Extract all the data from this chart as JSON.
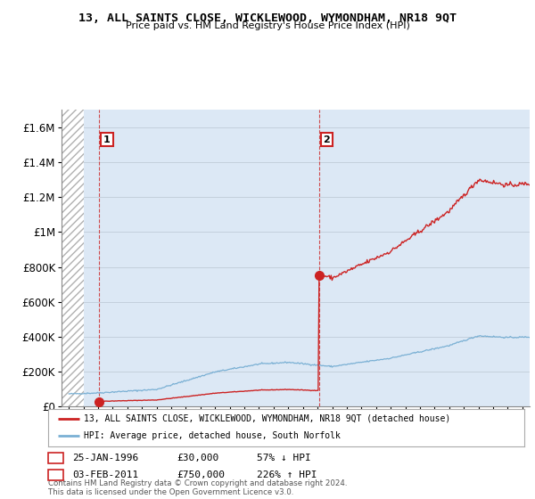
{
  "title": "13, ALL SAINTS CLOSE, WICKLEWOOD, WYMONDHAM, NR18 9QT",
  "subtitle": "Price paid vs. HM Land Registry's House Price Index (HPI)",
  "hpi_color": "#7ab0d4",
  "price_color": "#cc2222",
  "dot_color": "#cc2222",
  "sale1_year": 1996.07,
  "sale1_price": 30000,
  "sale2_year": 2011.09,
  "sale2_price": 750000,
  "ylim": [
    0,
    1700000
  ],
  "yticks": [
    0,
    200000,
    400000,
    600000,
    800000,
    1000000,
    1200000,
    1400000,
    1600000
  ],
  "ytick_labels": [
    "£0",
    "£200K",
    "£400K",
    "£600K",
    "£800K",
    "£1M",
    "£1.2M",
    "£1.4M",
    "£1.6M"
  ],
  "xlim_start": 1993.5,
  "xlim_end": 2025.5,
  "legend_line1": "13, ALL SAINTS CLOSE, WICKLEWOOD, WYMONDHAM, NR18 9QT (detached house)",
  "legend_line2": "HPI: Average price, detached house, South Norfolk",
  "annotation1_label": "1",
  "annotation1_date": "25-JAN-1996",
  "annotation1_price": "£30,000",
  "annotation1_pct": "57% ↓ HPI",
  "annotation2_label": "2",
  "annotation2_date": "03-FEB-2011",
  "annotation2_price": "£750,000",
  "annotation2_pct": "226% ↑ HPI",
  "footer": "Contains HM Land Registry data © Crown copyright and database right 2024.\nThis data is licensed under the Open Government Licence v3.0."
}
